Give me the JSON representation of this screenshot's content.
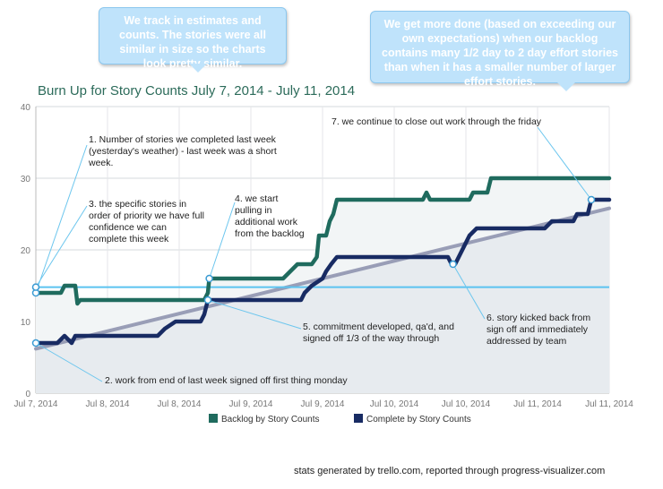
{
  "callouts": {
    "left": "We track in estimates and counts. The stories were all similar in size so the charts look pretty similar.",
    "right": "We get more done (based on exceeding our own expectations) when our backlog contains many 1/2 day to 2 day effort stories than when it has a smaller number of larger effort stories."
  },
  "footer": "stats generated by trello.com, reported through progress-visualizer.com",
  "annotations": [
    "1. Number of stories we completed last week (yesterday's weather) - last week was a short week.",
    "3. the specific stories in order of priority we have full confidence we can complete this week",
    "4. we start pulling in additional work from the backlog",
    "5. commitment developed, qa'd, and signed off 1/3 of the way through",
    "2. work from end of last week signed off first thing monday",
    "6. story kicked back from sign off and immediately addressed by team",
    "7. we continue to close out work through the friday"
  ],
  "colors": {
    "backlog": "#1f6b5e",
    "complete": "#182b63",
    "trend": "#8b90ad",
    "baseline": "#5bc3f0",
    "fill": "#e7ebef",
    "title": "#2c6b5a"
  },
  "chart_data": {
    "type": "line",
    "title": "Burn Up for Story Counts July 7, 2014 - July 11, 2014",
    "ylim": [
      0,
      40
    ],
    "yticks": [
      0,
      10,
      20,
      30,
      40
    ],
    "xlim": [
      0,
      8
    ],
    "x_tick_labels": [
      "Jul 7, 2014",
      "Jul 8, 2014",
      "Jul 8, 2014",
      "Jul 9, 2014",
      "Jul 9, 2014",
      "Jul 10, 2014",
      "Jul 10, 2014",
      "Jul 11, 2014",
      "Jul 11, 2014"
    ],
    "grid": true,
    "legend_position": "bottom",
    "series": [
      {
        "name": "Backlog by Story Counts",
        "points": [
          [
            0,
            14
          ],
          [
            0.35,
            14
          ],
          [
            0.4,
            15
          ],
          [
            0.55,
            15
          ],
          [
            0.58,
            12.5
          ],
          [
            0.62,
            13
          ],
          [
            2.35,
            13
          ],
          [
            2.4,
            14
          ],
          [
            2.42,
            16
          ],
          [
            3.45,
            16
          ],
          [
            3.55,
            17
          ],
          [
            3.65,
            18
          ],
          [
            3.85,
            18
          ],
          [
            3.92,
            19
          ],
          [
            3.95,
            22
          ],
          [
            4.05,
            22
          ],
          [
            4.1,
            24
          ],
          [
            4.15,
            25
          ],
          [
            4.2,
            27
          ],
          [
            5.4,
            27
          ],
          [
            5.45,
            28
          ],
          [
            5.5,
            27
          ],
          [
            6.05,
            27
          ],
          [
            6.1,
            28
          ],
          [
            6.3,
            28
          ],
          [
            6.35,
            30
          ],
          [
            8,
            30
          ]
        ]
      },
      {
        "name": "Complete by Story Counts",
        "points": [
          [
            0,
            7
          ],
          [
            0.3,
            7
          ],
          [
            0.4,
            8
          ],
          [
            0.5,
            7
          ],
          [
            0.55,
            8
          ],
          [
            1.7,
            8
          ],
          [
            1.8,
            9
          ],
          [
            1.95,
            10
          ],
          [
            2.3,
            10
          ],
          [
            2.35,
            11
          ],
          [
            2.4,
            13
          ],
          [
            3.7,
            13
          ],
          [
            3.75,
            14
          ],
          [
            3.85,
            15
          ],
          [
            4,
            16
          ],
          [
            4.05,
            17
          ],
          [
            4.12,
            18
          ],
          [
            4.2,
            19
          ],
          [
            5.75,
            19
          ],
          [
            5.8,
            18
          ],
          [
            5.85,
            18
          ],
          [
            5.95,
            20
          ],
          [
            6.05,
            22
          ],
          [
            6.15,
            23
          ],
          [
            7.1,
            23
          ],
          [
            7.2,
            24
          ],
          [
            7.5,
            24
          ],
          [
            7.55,
            25
          ],
          [
            7.7,
            25
          ],
          [
            7.75,
            27
          ],
          [
            8,
            27
          ]
        ]
      }
    ],
    "trend": [
      [
        0,
        6.2
      ],
      [
        8,
        25.8
      ]
    ],
    "baseline_value": 14.8
  }
}
